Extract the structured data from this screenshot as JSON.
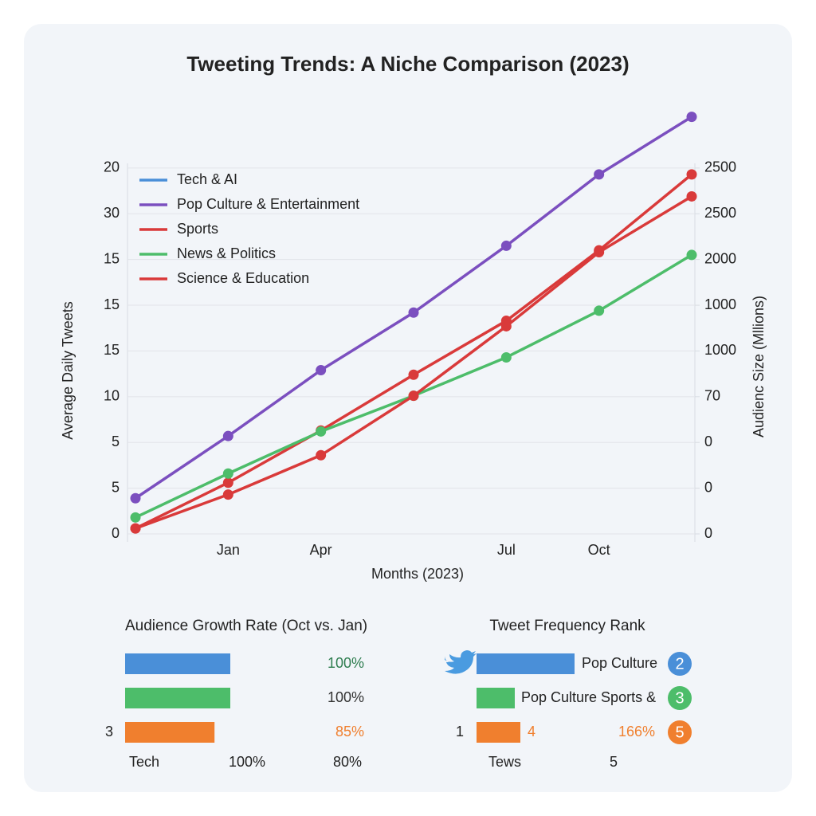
{
  "chart_data": [
    {
      "type": "line",
      "title": "Tweeting Trends: A Niche Comparison (2023)",
      "xlabel": "Months (2023)",
      "ylabel": "Average Daily Tweets",
      "y2label": "Audienc Size (Mllions)",
      "categories": [
        null,
        "Jan",
        "Apr",
        null,
        "Jul",
        "Oct",
        null
      ],
      "ylim": [
        0,
        46
      ],
      "yticks": [
        0,
        {
          "value": 5,
          "label": "5"
        },
        {
          "value": 10,
          "label": "5"
        },
        {
          "value": 15,
          "label": "10"
        },
        {
          "value": 20,
          "label": "15"
        },
        {
          "value": 25,
          "label": "15"
        },
        {
          "value": 30,
          "label": "15"
        },
        {
          "value": 35,
          "label": "30"
        },
        {
          "value": 40,
          "label": "20"
        }
      ],
      "y2lim": [
        0,
        46
      ],
      "y2ticks": [
        0,
        {
          "value": 5,
          "label": "0"
        },
        {
          "value": 10,
          "label": "0"
        },
        {
          "value": 15,
          "label": "70"
        },
        {
          "value": 20,
          "label": "1000"
        },
        {
          "value": 25,
          "label": "1000"
        },
        {
          "value": 30,
          "label": "2000"
        },
        {
          "value": 35,
          "label": "2500"
        },
        {
          "value": 40,
          "label": "2500"
        }
      ],
      "grid": true,
      "legend": "upper left",
      "series": [
        {
          "name": "Tech & AI",
          "color": "#4a8fd8",
          "values": [
            null,
            null,
            null,
            null,
            null,
            null,
            null
          ]
        },
        {
          "name": "Pop Culture & Entertainment",
          "color": "#7b4fbf",
          "values": [
            3.9,
            10.7,
            17.9,
            24.2,
            31.5,
            39.3,
            45.6
          ]
        },
        {
          "name": "Sports",
          "color": "#d93a3a",
          "values": [
            0.6,
            5.6,
            11.3,
            17.4,
            23.3,
            31.0,
            39.3
          ]
        },
        {
          "name": "News & Politics",
          "color": "#4dbd6a",
          "values": [
            1.8,
            6.6,
            11.2,
            15.1,
            19.3,
            24.4,
            30.5
          ]
        },
        {
          "name": "Science & Education",
          "color": "#d93a3a",
          "values": [
            0.6,
            4.3,
            8.6,
            15.1,
            22.7,
            30.8,
            36.9
          ]
        }
      ]
    },
    {
      "type": "hbar",
      "title": "Audience Growth Rate (Oct vs. Jan)",
      "categories": [
        null,
        null,
        "3"
      ],
      "values": [
        100,
        100,
        85
      ],
      "value_labels": [
        "100%",
        "100%",
        "85%"
      ],
      "colors": [
        "#4a8fd8",
        "#4dbd6a",
        "#f07f2e"
      ],
      "label_colors": [
        "#2e7d4f",
        "#333333",
        "#f07f2e"
      ],
      "xlim": [
        0,
        100
      ],
      "footer": [
        "Tech",
        "100%",
        "80%"
      ]
    }
  ],
  "rank_panel": {
    "title": "Tweet Frequency Rank",
    "rows": [
      {
        "label": "Pop Culture",
        "color": "#4a8fd8",
        "badge": 2
      },
      {
        "label": "Pop Culture Sports &",
        "color": "#4dbd6a",
        "badge": 3
      },
      {
        "label": "4",
        "value_label": "166%",
        "side": "1",
        "color": "#f07f2e",
        "badge": 5
      }
    ],
    "footer": [
      "Tews",
      "5"
    ]
  }
}
